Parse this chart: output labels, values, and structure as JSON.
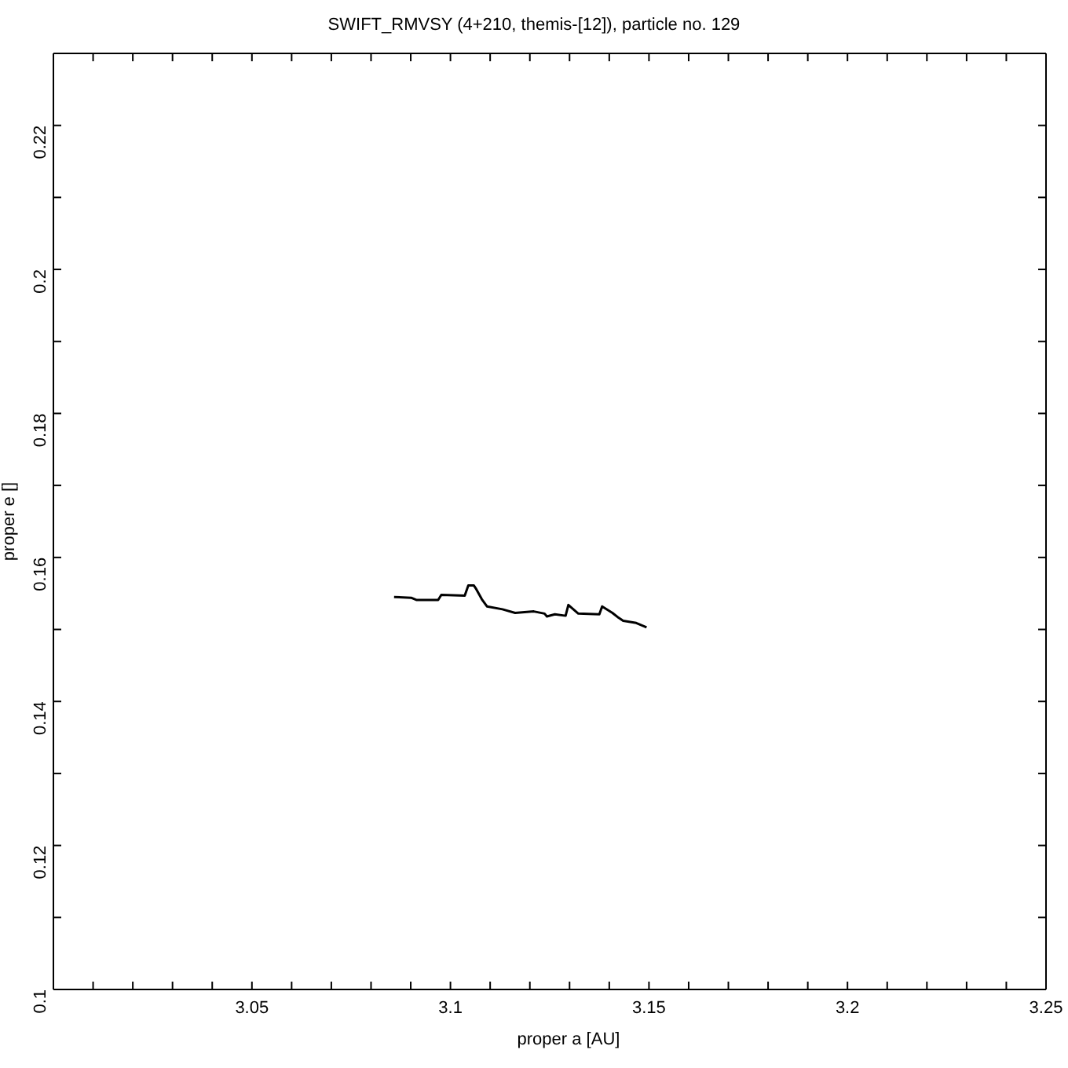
{
  "chart_data": {
    "type": "line",
    "title": "SWIFT_RMVSY (4+210, themis-[12]), particle no. 129",
    "xlabel": "proper a [AU]",
    "ylabel": "proper e []",
    "series": [
      {
        "color": "#000000",
        "x": [
          3.0858,
          3.0901,
          3.0914,
          3.0969,
          3.0977,
          3.1036,
          3.1045,
          3.1059,
          3.1065,
          3.1079,
          3.1092,
          3.1131,
          3.1163,
          3.121,
          3.1237,
          3.1243,
          3.1263,
          3.129,
          3.1297,
          3.1322,
          3.1375,
          3.1382,
          3.1408,
          3.1424,
          3.1435,
          3.1468,
          3.1494
        ],
        "values": [
          0.1545,
          0.1544,
          0.1541,
          0.1541,
          0.1548,
          0.1547,
          0.1561,
          0.1561,
          0.1556,
          0.1542,
          0.1532,
          0.1528,
          0.1523,
          0.1525,
          0.1522,
          0.1518,
          0.1521,
          0.1519,
          0.1534,
          0.1522,
          0.1521,
          0.1532,
          0.1523,
          0.1516,
          0.1512,
          0.1509,
          0.1503
        ]
      }
    ],
    "xlim": [
      3,
      3.25
    ],
    "xticks": [
      {
        "value": 3,
        "label": null
      },
      {
        "value": 3.01,
        "label": null
      },
      {
        "value": 3.02,
        "label": null
      },
      {
        "value": 3.03,
        "label": null
      },
      {
        "value": 3.04,
        "label": null
      },
      3.05,
      {
        "value": 3.06,
        "label": null
      },
      {
        "value": 3.07,
        "label": null
      },
      {
        "value": 3.08,
        "label": null
      },
      {
        "value": 3.09,
        "label": null
      },
      3.1,
      {
        "value": 3.11,
        "label": null
      },
      {
        "value": 3.12,
        "label": null
      },
      {
        "value": 3.13,
        "label": null
      },
      {
        "value": 3.14,
        "label": null
      },
      3.15,
      {
        "value": 3.16,
        "label": null
      },
      {
        "value": 3.17,
        "label": null
      },
      {
        "value": 3.18,
        "label": null
      },
      {
        "value": 3.19,
        "label": null
      },
      3.2,
      {
        "value": 3.21,
        "label": null
      },
      {
        "value": 3.22,
        "label": null
      },
      {
        "value": 3.23,
        "label": null
      },
      {
        "value": 3.24,
        "label": null
      },
      3.25
    ],
    "ylim": [
      0.1,
      0.23
    ],
    "yticks": [
      0.1,
      {
        "value": 0.11,
        "label": null
      },
      0.12,
      {
        "value": 0.13,
        "label": null
      },
      0.14,
      {
        "value": 0.15,
        "label": null
      },
      0.16,
      {
        "value": 0.17,
        "label": null
      },
      0.18,
      {
        "value": 0.19,
        "label": null
      },
      0.2,
      {
        "value": 0.21,
        "label": null
      },
      0.22,
      {
        "value": 0.23,
        "label": null
      }
    ],
    "marker": "none",
    "line_style": "solid"
  }
}
